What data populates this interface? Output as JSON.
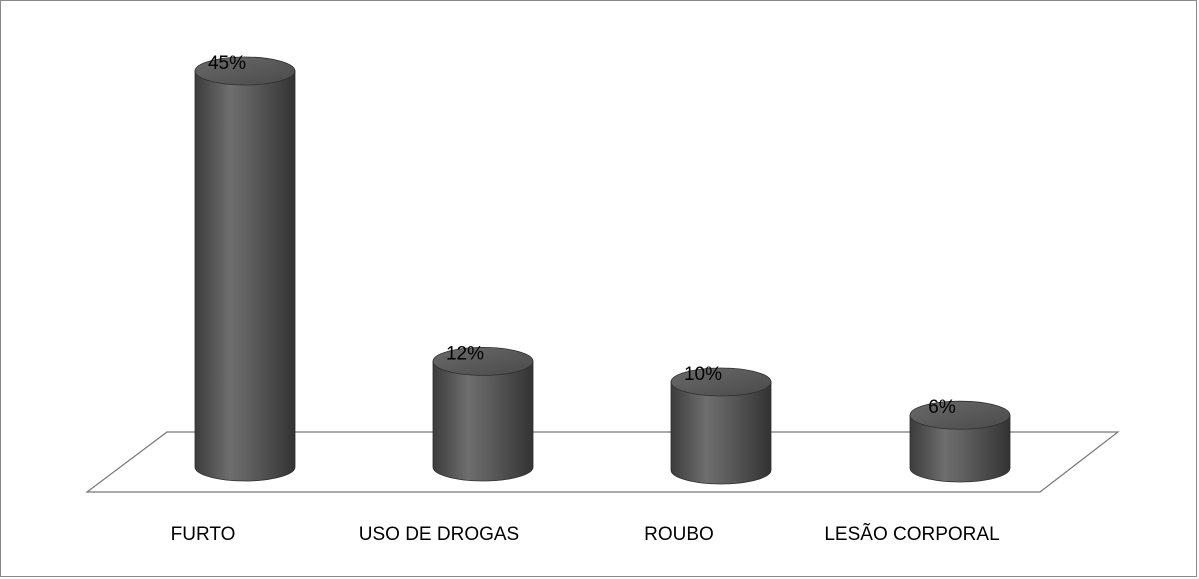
{
  "chart_data": {
    "type": "bar",
    "style": "3d-cylinder",
    "categories": [
      "FURTO",
      "USO DE DROGAS",
      "ROUBO",
      "LESÃO CORPORAL"
    ],
    "values": [
      45,
      12,
      10,
      6
    ],
    "data_labels": [
      "45%",
      "12%",
      "10%",
      "6%"
    ],
    "unit": "%",
    "title": "",
    "xlabel": "",
    "ylabel": "",
    "ylim": [
      0,
      45
    ],
    "grid": false,
    "legend": "none",
    "colors": {
      "bar": "#555555",
      "bar_dark": "#3a3a3a",
      "bar_light": "#8a8a8a",
      "floor_stroke": "#777777",
      "frame": "#8a8a8a"
    }
  }
}
